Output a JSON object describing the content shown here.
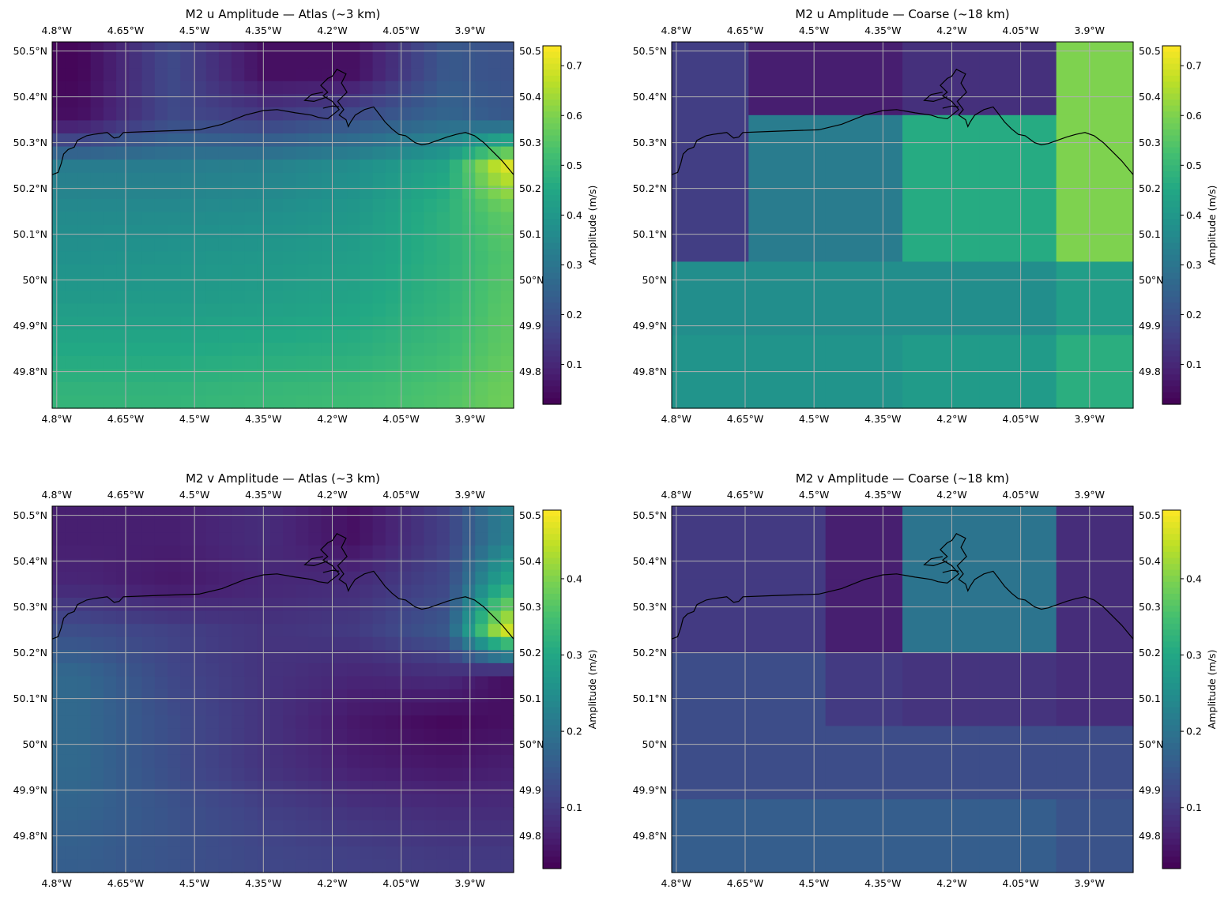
{
  "figure": {
    "panels": [
      {
        "id": "u-atlas",
        "title": "M2 u Amplitude — Atlas (~3 km)",
        "lon_ticks": [
          "4.8°W",
          "4.65°W",
          "4.5°W",
          "4.35°W",
          "4.2°W",
          "4.05°W",
          "3.9°W"
        ],
        "lat_ticks": [
          "50.5°N",
          "50.4°N",
          "50.3°N",
          "50.2°N",
          "50.1°N",
          "50°N",
          "49.9°N",
          "49.8°N"
        ],
        "lat_ticks_right": [
          "50.5",
          "50.4",
          "50.3",
          "50.2",
          "50.1",
          "50°N",
          "49.9",
          "49.8"
        ],
        "colorbar": {
          "label": "Amplitude (m/s)",
          "ticks": [
            "0.7",
            "0.6",
            "0.5",
            "0.4",
            "0.3",
            "0.2",
            "0.1"
          ]
        }
      },
      {
        "id": "u-coarse",
        "title": "M2 u Amplitude — Coarse (~18 km)",
        "lon_ticks": [
          "4.8°W",
          "4.65°W",
          "4.5°W",
          "4.35°W",
          "4.2°W",
          "4.05°W",
          "3.9°W"
        ],
        "lat_ticks": [
          "50.5°N",
          "50.4°N",
          "50.3°N",
          "50.2°N",
          "50.1°N",
          "50°N",
          "49.9°N",
          "49.8°N"
        ],
        "lat_ticks_right": [
          "50.5",
          "50.4",
          "50.3",
          "50.2",
          "50.1",
          "50°N",
          "49.9",
          "49.8"
        ],
        "colorbar": {
          "label": "Amplitude (m/s)",
          "ticks": [
            "0.7",
            "0.6",
            "0.5",
            "0.4",
            "0.3",
            "0.2",
            "0.1"
          ]
        }
      },
      {
        "id": "v-atlas",
        "title": "M2 v Amplitude — Atlas (~3 km)",
        "lon_ticks": [
          "4.8°W",
          "4.65°W",
          "4.5°W",
          "4.35°W",
          "4.2°W",
          "4.05°W",
          "3.9°W"
        ],
        "lat_ticks": [
          "50.5°N",
          "50.4°N",
          "50.3°N",
          "50.2°N",
          "50.1°N",
          "50°N",
          "49.9°N",
          "49.8°N"
        ],
        "lat_ticks_right": [
          "50.5",
          "50.4",
          "50.3",
          "50.2",
          "50.1",
          "50°N",
          "49.9",
          "49.8"
        ],
        "colorbar": {
          "label": "Amplitude (m/s)",
          "ticks": [
            "0.4",
            "0.3",
            "0.2",
            "0.1"
          ]
        }
      },
      {
        "id": "v-coarse",
        "title": "M2 v Amplitude — Coarse (~18 km)",
        "lon_ticks": [
          "4.8°W",
          "4.65°W",
          "4.5°W",
          "4.35°W",
          "4.2°W",
          "4.05°W",
          "3.9°W"
        ],
        "lat_ticks": [
          "50.5°N",
          "50.4°N",
          "50.3°N",
          "50.2°N",
          "50.1°N",
          "50°N",
          "49.9°N",
          "49.8°N"
        ],
        "lat_ticks_right": [
          "50.5",
          "50.4",
          "50.3",
          "50.2",
          "50.1",
          "50°N",
          "49.9",
          "49.8"
        ],
        "colorbar": {
          "label": "Amplitude (m/s)",
          "ticks": [
            "0.4",
            "0.3",
            "0.2",
            "0.1"
          ]
        }
      }
    ]
  },
  "map_extent": {
    "lon": [
      -4.81,
      -3.805
    ],
    "lat": [
      49.72,
      50.52
    ]
  },
  "colormap": "viridis",
  "coastline_color": "#000000",
  "gridline_color": "#b0b0b0",
  "chart_data": [
    {
      "type": "heatmap",
      "title": "M2 u Amplitude — Atlas (~3 km)",
      "variable": "M2 u amplitude",
      "units": "m/s",
      "grid_resolution_km": 3,
      "colorbar_range": [
        0.02,
        0.74
      ],
      "lon_range": [
        -4.81,
        -3.805
      ],
      "lat_range": [
        49.72,
        50.52
      ],
      "sampled_values": {
        "lon": [
          -4.75,
          -4.55,
          -4.35,
          -4.15,
          -3.95,
          -3.83
        ],
        "lat": [
          50.45,
          50.35,
          50.25,
          50.15,
          50.05,
          49.95,
          49.85,
          49.75
        ],
        "amplitude": [
          [
            0.03,
            0.18,
            0.05,
            0.05,
            0.22,
            0.2
          ],
          [
            0.05,
            0.18,
            0.15,
            0.2,
            0.26,
            0.22
          ],
          [
            0.32,
            0.32,
            0.33,
            0.37,
            0.44,
            0.7
          ],
          [
            0.36,
            0.36,
            0.37,
            0.4,
            0.48,
            0.56
          ],
          [
            0.38,
            0.39,
            0.4,
            0.42,
            0.48,
            0.54
          ],
          [
            0.41,
            0.41,
            0.42,
            0.44,
            0.49,
            0.55
          ],
          [
            0.45,
            0.45,
            0.46,
            0.47,
            0.51,
            0.56
          ],
          [
            0.49,
            0.49,
            0.5,
            0.51,
            0.54,
            0.58
          ]
        ]
      }
    },
    {
      "type": "heatmap",
      "title": "M2 u Amplitude — Coarse (~18 km)",
      "variable": "M2 u amplitude",
      "units": "m/s",
      "grid_resolution_km": 18,
      "colorbar_range": [
        0.02,
        0.74
      ],
      "lon_range": [
        -4.81,
        -3.805
      ],
      "lat_range": [
        49.72,
        50.52
      ],
      "sampled_values": {
        "lon": [
          -4.75,
          -4.55,
          -4.35,
          -4.15,
          -3.95,
          -3.83
        ],
        "lat": [
          50.45,
          50.35,
          50.25,
          50.15,
          50.05,
          49.95,
          49.85,
          49.75
        ],
        "amplitude": [
          [
            0.15,
            0.08,
            0.08,
            0.12,
            0.47,
            0.6
          ],
          [
            0.15,
            0.08,
            0.08,
            0.46,
            0.47,
            0.6
          ],
          [
            0.15,
            0.32,
            0.32,
            0.46,
            0.47,
            0.6
          ],
          [
            0.15,
            0.32,
            0.32,
            0.46,
            0.47,
            0.6
          ],
          [
            0.37,
            0.37,
            0.37,
            0.37,
            0.39,
            0.42
          ],
          [
            0.37,
            0.37,
            0.37,
            0.37,
            0.39,
            0.42
          ],
          [
            0.39,
            0.39,
            0.39,
            0.41,
            0.44,
            0.47
          ],
          [
            0.39,
            0.39,
            0.39,
            0.41,
            0.44,
            0.47
          ]
        ]
      }
    },
    {
      "type": "heatmap",
      "title": "M2 v Amplitude — Atlas (~3 km)",
      "variable": "M2 v amplitude",
      "units": "m/s",
      "grid_resolution_km": 3,
      "colorbar_range": [
        0.02,
        0.49
      ],
      "lon_range": [
        -4.81,
        -3.805
      ],
      "lat_range": [
        49.72,
        50.52
      ],
      "sampled_values": {
        "lon": [
          -4.75,
          -4.55,
          -4.35,
          -4.15,
          -3.95,
          -3.83
        ],
        "lat": [
          50.45,
          50.35,
          50.25,
          50.15,
          50.05,
          49.95,
          49.85,
          49.75
        ],
        "amplitude": [
          [
            0.06,
            0.06,
            0.08,
            0.04,
            0.11,
            0.22
          ],
          [
            0.07,
            0.05,
            0.07,
            0.08,
            0.12,
            0.3
          ],
          [
            0.13,
            0.11,
            0.09,
            0.1,
            0.15,
            0.46
          ],
          [
            0.18,
            0.12,
            0.09,
            0.07,
            0.08,
            0.04
          ],
          [
            0.18,
            0.13,
            0.09,
            0.05,
            0.03,
            0.04
          ],
          [
            0.18,
            0.13,
            0.09,
            0.06,
            0.05,
            0.06
          ],
          [
            0.17,
            0.14,
            0.11,
            0.09,
            0.08,
            0.08
          ],
          [
            0.16,
            0.14,
            0.12,
            0.11,
            0.1,
            0.1
          ]
        ]
      }
    },
    {
      "type": "heatmap",
      "title": "M2 v Amplitude — Coarse (~18 km)",
      "variable": "M2 v amplitude",
      "units": "m/s",
      "grid_resolution_km": 18,
      "colorbar_range": [
        0.02,
        0.49
      ],
      "lon_range": [
        -4.81,
        -3.805
      ],
      "lat_range": [
        49.72,
        50.52
      ],
      "sampled_values": {
        "lon": [
          -4.75,
          -4.55,
          -4.35,
          -4.15,
          -3.95,
          -3.83
        ],
        "lat": [
          50.45,
          50.35,
          50.25,
          50.15,
          50.05,
          49.95,
          49.85,
          49.75
        ],
        "amplitude": [
          [
            0.1,
            0.1,
            0.06,
            0.2,
            0.2,
            0.08
          ],
          [
            0.1,
            0.1,
            0.06,
            0.2,
            0.2,
            0.08
          ],
          [
            0.1,
            0.1,
            0.06,
            0.2,
            0.2,
            0.08
          ],
          [
            0.13,
            0.13,
            0.1,
            0.09,
            0.07,
            0.08
          ],
          [
            0.13,
            0.13,
            0.1,
            0.09,
            0.07,
            0.08
          ],
          [
            0.13,
            0.13,
            0.13,
            0.13,
            0.13,
            0.13
          ],
          [
            0.13,
            0.13,
            0.13,
            0.13,
            0.13,
            0.13
          ],
          [
            0.16,
            0.16,
            0.16,
            0.16,
            0.16,
            0.14
          ]
        ]
      }
    }
  ]
}
